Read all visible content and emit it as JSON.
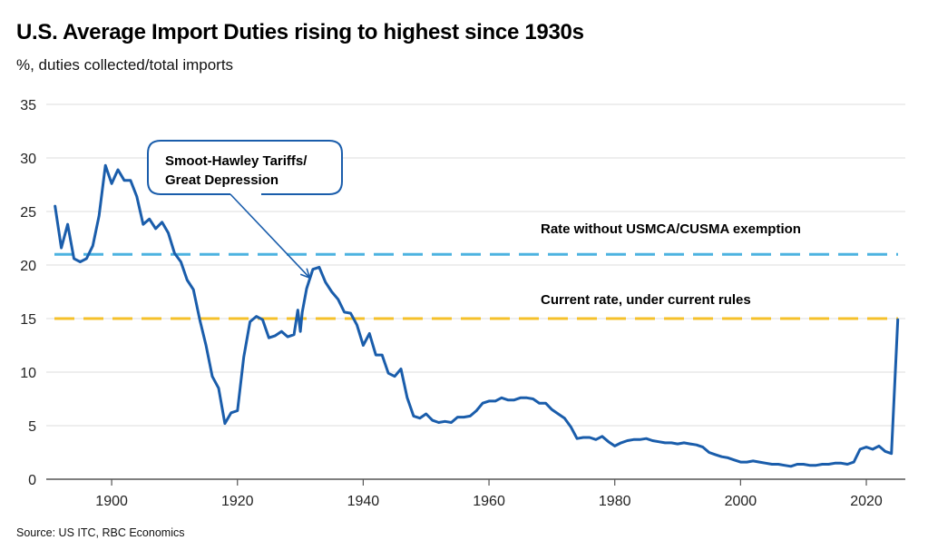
{
  "chart_data": {
    "type": "line",
    "title": "U.S. Average Import Duties rising to highest since 1930s",
    "subtitle": "%, duties collected/total imports",
    "xlabel": "",
    "ylabel": "",
    "source": "Source: US ITC, RBC Economics",
    "xlim": [
      1889.6,
      2026.2
    ],
    "ylim": [
      0,
      35
    ],
    "grid": "horizontal",
    "legend": "none",
    "x_ticks": [
      1900,
      1920,
      1940,
      1960,
      1980,
      2000,
      2020
    ],
    "x_tick_labels": [
      "1900",
      "1920",
      "1940",
      "1960",
      "1980",
      "2000",
      "2020"
    ],
    "y_ticks": [
      0,
      5,
      10,
      15,
      20,
      25,
      30,
      35
    ],
    "y_tick_labels": [
      "0",
      "5",
      "10",
      "15",
      "20",
      "25",
      "30",
      "35"
    ],
    "series": [
      {
        "name": "U.S. average import duties",
        "color": "#1a5dab",
        "x": [
          1891,
          1892,
          1893,
          1894,
          1895,
          1896,
          1897,
          1898,
          1899,
          1900,
          1901,
          1902,
          1903,
          1904,
          1905,
          1906,
          1907,
          1908,
          1909,
          1910,
          1911,
          1912,
          1913,
          1914,
          1915,
          1916,
          1917,
          1918,
          1919,
          1920,
          1921,
          1922,
          1923,
          1924,
          1925,
          1926,
          1927,
          1928,
          1929,
          1929.6,
          1930,
          1930.3,
          1931,
          1932,
          1933,
          1934,
          1935,
          1936,
          1937,
          1938,
          1939,
          1940,
          1941,
          1942,
          1943,
          1944,
          1945,
          1946,
          1947,
          1948,
          1949,
          1950,
          1951,
          1952,
          1953,
          1954,
          1955,
          1956,
          1957,
          1958,
          1959,
          1960,
          1961,
          1962,
          1963,
          1964,
          1965,
          1966,
          1967,
          1968,
          1969,
          1970,
          1971,
          1972,
          1973,
          1974,
          1975,
          1976,
          1977,
          1978,
          1979,
          1980,
          1981,
          1982,
          1983,
          1984,
          1985,
          1986,
          1987,
          1988,
          1989,
          1990,
          1991,
          1992,
          1993,
          1994,
          1995,
          1996,
          1997,
          1998,
          1999,
          2000,
          2001,
          2002,
          2003,
          2004,
          2005,
          2006,
          2007,
          2008,
          2009,
          2010,
          2011,
          2012,
          2013,
          2014,
          2015,
          2016,
          2017,
          2018,
          2019,
          2020,
          2021,
          2022,
          2023,
          2024,
          2025
        ],
        "values": [
          25.5,
          21.6,
          23.8,
          20.6,
          20.3,
          20.6,
          21.8,
          24.6,
          29.3,
          27.6,
          28.9,
          27.9,
          27.9,
          26.4,
          23.8,
          24.3,
          23.4,
          24.0,
          23.0,
          21.1,
          20.3,
          18.6,
          17.7,
          14.9,
          12.5,
          9.6,
          8.5,
          5.2,
          6.2,
          6.4,
          11.4,
          14.7,
          15.2,
          14.9,
          13.2,
          13.4,
          13.8,
          13.3,
          13.5,
          15.8,
          13.8,
          15.6,
          17.8,
          19.6,
          19.8,
          18.4,
          17.5,
          16.8,
          15.6,
          15.5,
          14.4,
          12.5,
          13.6,
          11.6,
          11.6,
          9.9,
          9.6,
          10.3,
          7.6,
          5.9,
          5.7,
          6.1,
          5.5,
          5.3,
          5.4,
          5.3,
          5.8,
          5.8,
          5.9,
          6.4,
          7.1,
          7.3,
          7.3,
          7.6,
          7.4,
          7.4,
          7.6,
          7.6,
          7.5,
          7.1,
          7.1,
          6.5,
          6.1,
          5.7,
          4.9,
          3.8,
          3.9,
          3.9,
          3.7,
          4.0,
          3.5,
          3.1,
          3.4,
          3.6,
          3.7,
          3.7,
          3.8,
          3.6,
          3.5,
          3.4,
          3.4,
          3.3,
          3.4,
          3.3,
          3.2,
          3.0,
          2.5,
          2.3,
          2.1,
          2.0,
          1.8,
          1.6,
          1.6,
          1.7,
          1.6,
          1.5,
          1.4,
          1.4,
          1.3,
          1.2,
          1.4,
          1.4,
          1.3,
          1.3,
          1.4,
          1.4,
          1.5,
          1.5,
          1.4,
          1.6,
          2.8,
          3.0,
          2.8,
          3.1,
          2.6,
          2.4,
          14.9
        ]
      }
    ],
    "reference_lines": [
      {
        "name": "Rate without USMCA/CUSMA exemption",
        "value": 21,
        "color": "#4db3e0",
        "style": "dashed",
        "label": "Rate without USMCA/CUSMA exemption"
      },
      {
        "name": "Current rate, under current rules",
        "value": 15,
        "color": "#f5c02a",
        "style": "dashed",
        "label": "Current rate, under current rules"
      }
    ],
    "annotations": [
      {
        "text_lines": [
          "Smoot-Hawley Tariffs/",
          "Great Depression"
        ],
        "points_to_year": 1931.5,
        "points_to_value": 18.8,
        "border_color": "#1a5dab"
      }
    ]
  }
}
